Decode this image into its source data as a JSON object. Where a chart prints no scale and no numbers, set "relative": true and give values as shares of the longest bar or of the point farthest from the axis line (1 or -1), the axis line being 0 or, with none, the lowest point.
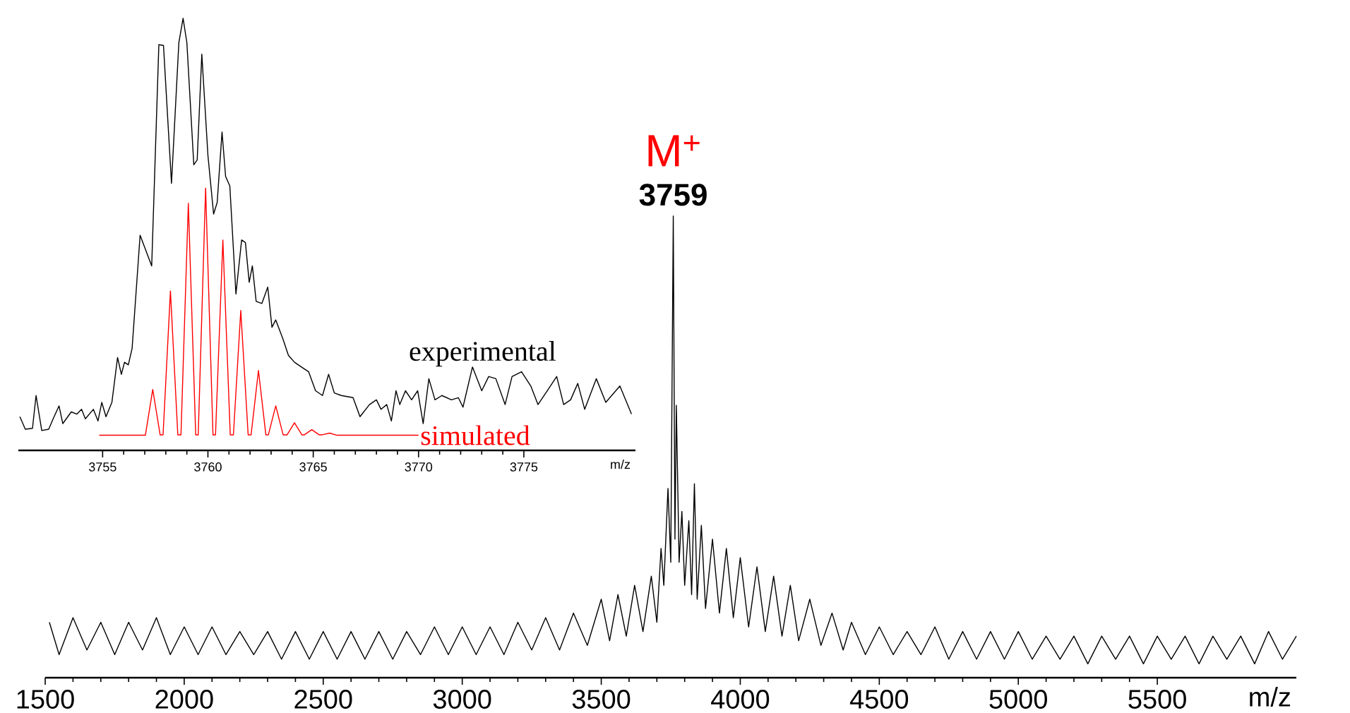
{
  "chart_data": [
    {
      "type": "line",
      "relative": true,
      "xlabel": "m/z",
      "xlim": [
        1500,
        6000
      ],
      "xticks": [
        1500,
        2000,
        2500,
        3000,
        3500,
        4000,
        4500,
        5000,
        5500
      ],
      "marker": "none",
      "line_style": "solid",
      "annotations": [
        {
          "text": "3759",
          "x": 3759,
          "y": 1.0
        },
        {
          "text": "M$^{+}$",
          "x": 3759,
          "y": 1.0
        }
      ],
      "series": [
        {
          "color": "#000000",
          "x": [
            1515,
            1550,
            1600,
            1650,
            1700,
            1750,
            1800,
            1850,
            1900,
            1950,
            2000,
            2050,
            2100,
            2150,
            2200,
            2250,
            2300,
            2350,
            2400,
            2450,
            2500,
            2550,
            2600,
            2650,
            2700,
            2750,
            2800,
            2850,
            2900,
            2950,
            3000,
            3050,
            3100,
            3150,
            3200,
            3250,
            3300,
            3350,
            3400,
            3450,
            3500,
            3530,
            3560,
            3590,
            3620,
            3650,
            3680,
            3700,
            3715,
            3725,
            3740,
            3750,
            3759,
            3765,
            3770,
            3780,
            3790,
            3800,
            3815,
            3825,
            3835,
            3845,
            3860,
            3875,
            3900,
            3925,
            3950,
            3975,
            4000,
            4030,
            4060,
            4090,
            4120,
            4150,
            4180,
            4210,
            4250,
            4290,
            4330,
            4370,
            4400,
            4450,
            4500,
            4550,
            4600,
            4650,
            4700,
            4750,
            4800,
            4850,
            4900,
            4950,
            5000,
            5050,
            5100,
            5150,
            5200,
            5250,
            5300,
            5350,
            5400,
            5450,
            5500,
            5550,
            5600,
            5650,
            5700,
            5750,
            5800,
            5850,
            5900,
            5950,
            6000
          ],
          "values": [
            0.12,
            0.05,
            0.13,
            0.06,
            0.12,
            0.05,
            0.12,
            0.06,
            0.13,
            0.05,
            0.11,
            0.05,
            0.11,
            0.05,
            0.1,
            0.05,
            0.1,
            0.04,
            0.1,
            0.04,
            0.1,
            0.04,
            0.1,
            0.04,
            0.1,
            0.04,
            0.1,
            0.05,
            0.11,
            0.05,
            0.11,
            0.05,
            0.11,
            0.05,
            0.12,
            0.06,
            0.13,
            0.06,
            0.14,
            0.07,
            0.17,
            0.08,
            0.18,
            0.09,
            0.2,
            0.1,
            0.22,
            0.12,
            0.28,
            0.2,
            0.41,
            0.25,
            1.0,
            0.3,
            0.59,
            0.25,
            0.36,
            0.2,
            0.34,
            0.18,
            0.42,
            0.17,
            0.33,
            0.15,
            0.3,
            0.14,
            0.28,
            0.13,
            0.26,
            0.11,
            0.24,
            0.1,
            0.22,
            0.09,
            0.2,
            0.08,
            0.17,
            0.07,
            0.14,
            0.06,
            0.12,
            0.05,
            0.11,
            0.05,
            0.1,
            0.05,
            0.11,
            0.04,
            0.1,
            0.04,
            0.1,
            0.04,
            0.1,
            0.04,
            0.09,
            0.04,
            0.09,
            0.03,
            0.09,
            0.04,
            0.09,
            0.03,
            0.09,
            0.04,
            0.09,
            0.03,
            0.09,
            0.04,
            0.09,
            0.03,
            0.1,
            0.04,
            0.09
          ]
        }
      ]
    },
    {
      "type": "line",
      "relative": true,
      "xlabel": "m/z",
      "xlim": [
        3751,
        3780.3
      ],
      "xticks": [
        3755,
        3760,
        3765,
        3770,
        3775
      ],
      "marker": "none",
      "line_style": "solid",
      "series": [
        {
          "name": "experimental",
          "color": "#000000",
          "x": [
            3751.07,
            3751.33,
            3751.67,
            3751.84,
            3752.11,
            3752.44,
            3752.67,
            3752.93,
            3753.11,
            3753.51,
            3753.78,
            3754.0,
            3754.18,
            3754.56,
            3754.78,
            3754.96,
            3755.16,
            3755.44,
            3755.71,
            3755.89,
            3756.04,
            3756.22,
            3756.4,
            3756.78,
            3757.33,
            3757.67,
            3757.89,
            3758.27,
            3758.62,
            3758.82,
            3759.0,
            3759.33,
            3759.49,
            3759.71,
            3760.0,
            3760.27,
            3760.44,
            3760.67,
            3760.84,
            3761.04,
            3761.33,
            3761.6,
            3761.78,
            3761.96,
            3762.11,
            3762.29,
            3762.56,
            3762.84,
            3763.04,
            3763.22,
            3763.56,
            3763.82,
            3764.11,
            3764.44,
            3764.78,
            3765.11,
            3765.44,
            3765.73,
            3766.0,
            3766.33,
            3766.89,
            3767.22,
            3767.67,
            3768.0,
            3768.22,
            3768.49,
            3768.71,
            3768.93,
            3769.11,
            3769.38,
            3769.67,
            3769.96,
            3770.22,
            3770.49,
            3770.78,
            3771.11,
            3771.56,
            3771.89,
            3772.11,
            3772.56,
            3773.0,
            3773.33,
            3773.67,
            3774.11,
            3774.44,
            3774.89,
            3775.33,
            3775.67,
            3776.11,
            3776.56,
            3776.89,
            3777.22,
            3777.56,
            3777.89,
            3778.44,
            3778.89,
            3779.56,
            3780.11
          ],
          "values": [
            0.078,
            0.049,
            0.051,
            0.127,
            0.046,
            0.049,
            0.075,
            0.103,
            0.062,
            0.089,
            0.084,
            0.095,
            0.073,
            0.095,
            0.068,
            0.111,
            0.078,
            0.111,
            0.215,
            0.176,
            0.204,
            0.198,
            0.236,
            0.498,
            0.427,
            0.939,
            0.937,
            0.618,
            0.944,
            1.0,
            0.944,
            0.661,
            0.672,
            0.917,
            0.683,
            0.547,
            0.574,
            0.737,
            0.634,
            0.612,
            0.362,
            0.487,
            0.481,
            0.389,
            0.427,
            0.345,
            0.34,
            0.378,
            0.285,
            0.302,
            0.258,
            0.22,
            0.204,
            0.193,
            0.182,
            0.138,
            0.127,
            0.176,
            0.133,
            0.127,
            0.122,
            0.078,
            0.106,
            0.117,
            0.095,
            0.106,
            0.068,
            0.138,
            0.106,
            0.138,
            0.117,
            0.138,
            0.062,
            0.166,
            0.117,
            0.127,
            0.117,
            0.122,
            0.1,
            0.193,
            0.138,
            0.171,
            0.166,
            0.106,
            0.171,
            0.182,
            0.149,
            0.106,
            0.138,
            0.171,
            0.106,
            0.117,
            0.155,
            0.095,
            0.166,
            0.111,
            0.149,
            0.084
          ]
        },
        {
          "name": "simulated",
          "color": "#ff0000",
          "x": [
            3754.84,
            3757.03,
            3757.38,
            3757.73,
            3757.87,
            3758.22,
            3758.57,
            3758.72,
            3759.07,
            3759.42,
            3759.54,
            3759.89,
            3760.24,
            3760.36,
            3760.71,
            3761.06,
            3761.21,
            3761.56,
            3761.91,
            3762.05,
            3762.4,
            3762.75,
            3762.87,
            3763.22,
            3763.57,
            3763.76,
            3764.11,
            3764.46,
            3764.58,
            3764.93,
            3765.28,
            3765.43,
            3765.78,
            3766.13,
            3770.0
          ],
          "values": [
            0.035,
            0.035,
            0.141,
            0.036,
            0.036,
            0.369,
            0.036,
            0.036,
            0.572,
            0.036,
            0.036,
            0.607,
            0.036,
            0.036,
            0.487,
            0.036,
            0.036,
            0.324,
            0.036,
            0.036,
            0.185,
            0.036,
            0.036,
            0.103,
            0.036,
            0.036,
            0.064,
            0.036,
            0.036,
            0.048,
            0.036,
            0.036,
            0.04,
            0.035,
            0.035
          ]
        }
      ]
    }
  ]
}
